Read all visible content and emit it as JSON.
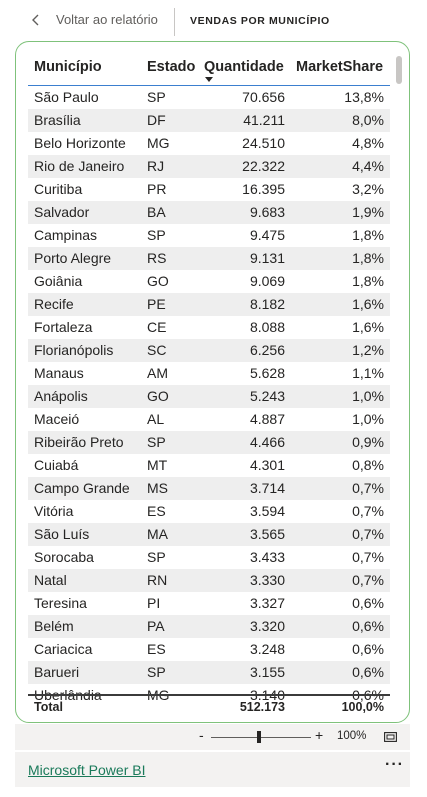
{
  "topbar": {
    "back_label": "Voltar ao relatório",
    "page_title": "VENDAS POR MUNICÍPIO"
  },
  "table": {
    "headers": [
      "Município",
      "Estado",
      "Quantidade",
      "MarketShare"
    ],
    "sort_column": "Quantidade",
    "rows": [
      [
        "São Paulo",
        "SP",
        "70.656",
        "13,8%"
      ],
      [
        "Brasília",
        "DF",
        "41.211",
        "8,0%"
      ],
      [
        "Belo Horizonte",
        "MG",
        "24.510",
        "4,8%"
      ],
      [
        "Rio de Janeiro",
        "RJ",
        "22.322",
        "4,4%"
      ],
      [
        "Curitiba",
        "PR",
        "16.395",
        "3,2%"
      ],
      [
        "Salvador",
        "BA",
        "9.683",
        "1,9%"
      ],
      [
        "Campinas",
        "SP",
        "9.475",
        "1,8%"
      ],
      [
        "Porto Alegre",
        "RS",
        "9.131",
        "1,8%"
      ],
      [
        "Goiânia",
        "GO",
        "9.069",
        "1,8%"
      ],
      [
        "Recife",
        "PE",
        "8.182",
        "1,6%"
      ],
      [
        "Fortaleza",
        "CE",
        "8.088",
        "1,6%"
      ],
      [
        "Florianópolis",
        "SC",
        "6.256",
        "1,2%"
      ],
      [
        "Manaus",
        "AM",
        "5.628",
        "1,1%"
      ],
      [
        "Anápolis",
        "GO",
        "5.243",
        "1,0%"
      ],
      [
        "Maceió",
        "AL",
        "4.887",
        "1,0%"
      ],
      [
        "Ribeirão Preto",
        "SP",
        "4.466",
        "0,9%"
      ],
      [
        "Cuiabá",
        "MT",
        "4.301",
        "0,8%"
      ],
      [
        "Campo Grande",
        "MS",
        "3.714",
        "0,7%"
      ],
      [
        "Vitória",
        "ES",
        "3.594",
        "0,7%"
      ],
      [
        "São Luís",
        "MA",
        "3.565",
        "0,7%"
      ],
      [
        "Sorocaba",
        "SP",
        "3.433",
        "0,7%"
      ],
      [
        "Natal",
        "RN",
        "3.330",
        "0,7%"
      ],
      [
        "Teresina",
        "PI",
        "3.327",
        "0,6%"
      ],
      [
        "Belém",
        "PA",
        "3.320",
        "0,6%"
      ],
      [
        "Cariacica",
        "ES",
        "3.248",
        "0,6%"
      ],
      [
        "Barueri",
        "SP",
        "3.155",
        "0,6%"
      ],
      [
        "Uberlândia",
        "MG",
        "3.140",
        "0,6%"
      ]
    ],
    "total": {
      "label": "Total",
      "estado": "",
      "quantidade": "512.173",
      "marketshare": "100,0%"
    }
  },
  "zoom": {
    "minus": "-",
    "plus": "+",
    "percent": "100%",
    "level": 1.0
  },
  "footer": {
    "brand": "Microsoft Power BI",
    "more": "···"
  },
  "colors": {
    "card_border": "#7fc27b",
    "header_line": "#3b7fcf",
    "row_alt": "#eeeeee",
    "brand_link": "#1a7a5a",
    "bar_bg": "#f3f2f1"
  },
  "icons": {
    "back": "chevron-left-icon",
    "sort": "sort-descending-icon",
    "fit": "fit-to-page-icon"
  }
}
